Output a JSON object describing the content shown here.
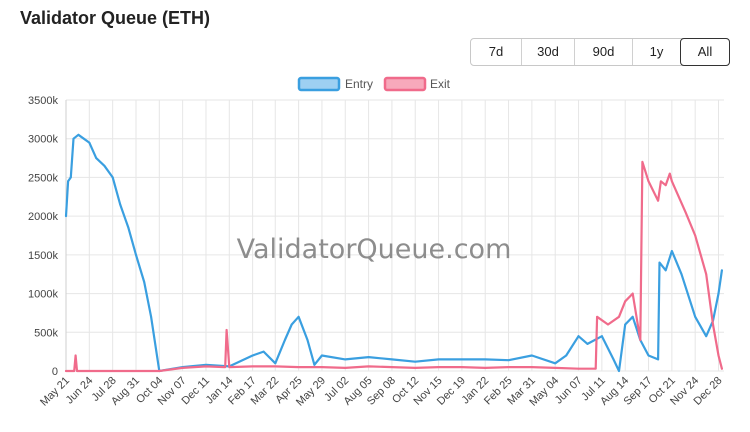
{
  "page": {
    "title": "Validator Queue (ETH)"
  },
  "range_selector": {
    "options": [
      "7d",
      "30d",
      "90d",
      "1y",
      "All"
    ],
    "selected": "All"
  },
  "watermark": "ValidatorQueue.com",
  "colors": {
    "entry": "#3a9fe0",
    "entry_fill": "#9ed0f2",
    "exit": "#f06b8b",
    "exit_fill": "#f7a9bb",
    "grid": "#e6e6e6"
  },
  "chart_data": {
    "type": "line",
    "title": "",
    "xlabel": "",
    "ylabel": "",
    "legend_position": "top-center",
    "grid": true,
    "ylim": [
      0,
      3500000
    ],
    "y_ticks": [
      "0",
      "500k",
      "1000k",
      "1500k",
      "2000k",
      "2500k",
      "3000k",
      "3500k"
    ],
    "x_ticks": [
      "May 21",
      "Jun 24",
      "Jul 28",
      "Aug 31",
      "Oct 04",
      "Nov 07",
      "Dec 11",
      "Jan 14",
      "Feb 17",
      "Mar 22",
      "Apr 25",
      "May 29",
      "Jul 02",
      "Aug 05",
      "Sep 08",
      "Oct 12",
      "Nov 15",
      "Dec 19",
      "Jan 22",
      "Feb 25",
      "Mar 31",
      "May 04",
      "Jun 07",
      "Jul 11",
      "Aug 14",
      "Sep 17",
      "Oct 21",
      "Nov 24",
      "Dec 28"
    ],
    "series": [
      {
        "name": "Entry",
        "values": [
          {
            "x": "May 21",
            "y": 2000000
          },
          {
            "x": "May 24",
            "y": 2450000
          },
          {
            "x": "May 28",
            "y": 2500000
          },
          {
            "x": "Jun 01",
            "y": 3000000
          },
          {
            "x": "Jun 08",
            "y": 3050000
          },
          {
            "x": "Jun 16",
            "y": 3000000
          },
          {
            "x": "Jun 24",
            "y": 2950000
          },
          {
            "x": "Jul 04",
            "y": 2750000
          },
          {
            "x": "Jul 16",
            "y": 2650000
          },
          {
            "x": "Jul 28",
            "y": 2500000
          },
          {
            "x": "Aug 08",
            "y": 2150000
          },
          {
            "x": "Aug 20",
            "y": 1850000
          },
          {
            "x": "Aug 31",
            "y": 1500000
          },
          {
            "x": "Sep 12",
            "y": 1150000
          },
          {
            "x": "Sep 22",
            "y": 700000
          },
          {
            "x": "Oct 04",
            "y": 0
          },
          {
            "x": "Nov 07",
            "y": 50000
          },
          {
            "x": "Dec 11",
            "y": 80000
          },
          {
            "x": "Jan 14",
            "y": 60000
          },
          {
            "x": "Feb 17",
            "y": 200000
          },
          {
            "x": "Mar 05",
            "y": 250000
          },
          {
            "x": "Mar 22",
            "y": 100000
          },
          {
            "x": "Apr 05",
            "y": 400000
          },
          {
            "x": "Apr 15",
            "y": 600000
          },
          {
            "x": "Apr 25",
            "y": 700000
          },
          {
            "x": "May 08",
            "y": 400000
          },
          {
            "x": "May 18",
            "y": 80000
          },
          {
            "x": "May 29",
            "y": 200000
          },
          {
            "x": "Jul 02",
            "y": 150000
          },
          {
            "x": "Aug 05",
            "y": 180000
          },
          {
            "x": "Sep 08",
            "y": 150000
          },
          {
            "x": "Oct 12",
            "y": 120000
          },
          {
            "x": "Nov 15",
            "y": 150000
          },
          {
            "x": "Dec 19",
            "y": 150000
          },
          {
            "x": "Jan 22",
            "y": 150000
          },
          {
            "x": "Feb 25",
            "y": 140000
          },
          {
            "x": "Mar 31",
            "y": 200000
          },
          {
            "x": "May 04",
            "y": 100000
          },
          {
            "x": "May 20",
            "y": 200000
          },
          {
            "x": "Jun 07",
            "y": 450000
          },
          {
            "x": "Jun 20",
            "y": 350000
          },
          {
            "x": "Jul 11",
            "y": 450000
          },
          {
            "x": "Jul 28",
            "y": 150000
          },
          {
            "x": "Aug 05",
            "y": 0
          },
          {
            "x": "Aug 14",
            "y": 600000
          },
          {
            "x": "Aug 25",
            "y": 700000
          },
          {
            "x": "Sep 05",
            "y": 400000
          },
          {
            "x": "Sep 17",
            "y": 200000
          },
          {
            "x": "Oct 01",
            "y": 150000
          },
          {
            "x": "Oct 03",
            "y": 1400000
          },
          {
            "x": "Oct 12",
            "y": 1300000
          },
          {
            "x": "Oct 21",
            "y": 1550000
          },
          {
            "x": "Nov 04",
            "y": 1250000
          },
          {
            "x": "Nov 24",
            "y": 700000
          },
          {
            "x": "Dec 10",
            "y": 450000
          },
          {
            "x": "Dec 20",
            "y": 650000
          },
          {
            "x": "Dec 28",
            "y": 1000000
          },
          {
            "x": "Jan 02",
            "y": 1300000
          }
        ]
      },
      {
        "name": "Exit",
        "values": [
          {
            "x": "May 21",
            "y": 0
          },
          {
            "x": "Jun 02",
            "y": 0
          },
          {
            "x": "Jun 04",
            "y": 200000
          },
          {
            "x": "Jun 06",
            "y": 0
          },
          {
            "x": "Oct 04",
            "y": 0
          },
          {
            "x": "Nov 07",
            "y": 40000
          },
          {
            "x": "Dec 11",
            "y": 60000
          },
          {
            "x": "Jan 08",
            "y": 50000
          },
          {
            "x": "Jan 10",
            "y": 530000
          },
          {
            "x": "Jan 14",
            "y": 50000
          },
          {
            "x": "Feb 17",
            "y": 60000
          },
          {
            "x": "Mar 22",
            "y": 60000
          },
          {
            "x": "Apr 25",
            "y": 50000
          },
          {
            "x": "May 29",
            "y": 50000
          },
          {
            "x": "Jul 02",
            "y": 40000
          },
          {
            "x": "Aug 05",
            "y": 60000
          },
          {
            "x": "Sep 08",
            "y": 50000
          },
          {
            "x": "Oct 12",
            "y": 40000
          },
          {
            "x": "Nov 15",
            "y": 50000
          },
          {
            "x": "Dec 19",
            "y": 50000
          },
          {
            "x": "Jan 22",
            "y": 40000
          },
          {
            "x": "Feb 25",
            "y": 50000
          },
          {
            "x": "Mar 31",
            "y": 50000
          },
          {
            "x": "May 04",
            "y": 40000
          },
          {
            "x": "Jun 07",
            "y": 30000
          },
          {
            "x": "Jul 02",
            "y": 30000
          },
          {
            "x": "Jul 04",
            "y": 700000
          },
          {
            "x": "Jul 20",
            "y": 600000
          },
          {
            "x": "Aug 05",
            "y": 700000
          },
          {
            "x": "Aug 14",
            "y": 900000
          },
          {
            "x": "Aug 25",
            "y": 1000000
          },
          {
            "x": "Sep 05",
            "y": 400000
          },
          {
            "x": "Sep 08",
            "y": 2700000
          },
          {
            "x": "Sep 17",
            "y": 2450000
          },
          {
            "x": "Oct 01",
            "y": 2200000
          },
          {
            "x": "Oct 05",
            "y": 2450000
          },
          {
            "x": "Oct 12",
            "y": 2400000
          },
          {
            "x": "Oct 18",
            "y": 2550000
          },
          {
            "x": "Oct 21",
            "y": 2450000
          },
          {
            "x": "Nov 10",
            "y": 2050000
          },
          {
            "x": "Nov 24",
            "y": 1750000
          },
          {
            "x": "Dec 10",
            "y": 1250000
          },
          {
            "x": "Dec 20",
            "y": 600000
          },
          {
            "x": "Dec 28",
            "y": 200000
          },
          {
            "x": "Jan 02",
            "y": 30000
          }
        ]
      }
    ]
  }
}
